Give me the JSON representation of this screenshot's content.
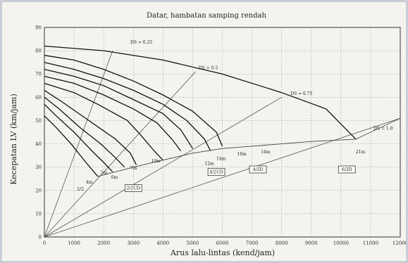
{
  "chart_data": {
    "type": "line",
    "title": "Datar, hambatan samping rendah",
    "xlabel": "Arus lalu-lintas (kend/jam)",
    "ylabel": "Kecepatan LV (km/jam)",
    "xlim": [
      0,
      12000
    ],
    "ylim": [
      0,
      90
    ],
    "xticks": [
      0,
      1000,
      2000,
      3000,
      4000,
      5000,
      6000,
      7000,
      8000,
      9000,
      10000,
      11000,
      12000
    ],
    "yticks": [
      0,
      10,
      20,
      30,
      40,
      50,
      60,
      70,
      80,
      90
    ],
    "grid": true,
    "series": [
      {
        "values": [
          [
            0,
            82
          ],
          [
            2000,
            80
          ],
          [
            4000,
            76
          ],
          [
            6000,
            70
          ],
          [
            8000,
            62
          ],
          [
            9500,
            55
          ],
          [
            10500,
            42
          ]
        ]
      },
      {
        "values": [
          [
            0,
            78
          ],
          [
            1000,
            76
          ],
          [
            2000,
            72
          ],
          [
            3000,
            67
          ],
          [
            4000,
            61
          ],
          [
            5000,
            54
          ],
          [
            5800,
            45
          ],
          [
            6000,
            39
          ]
        ]
      },
      {
        "values": [
          [
            0,
            75
          ],
          [
            1000,
            72
          ],
          [
            2000,
            68
          ],
          [
            3000,
            63
          ],
          [
            4000,
            57
          ],
          [
            4800,
            50
          ],
          [
            5400,
            42
          ],
          [
            5600,
            37
          ]
        ]
      },
      {
        "values": [
          [
            0,
            72
          ],
          [
            1000,
            69
          ],
          [
            2000,
            65
          ],
          [
            3000,
            59
          ],
          [
            4000,
            53
          ],
          [
            4600,
            46
          ],
          [
            5000,
            38
          ]
        ]
      },
      {
        "values": [
          [
            0,
            69
          ],
          [
            1000,
            66
          ],
          [
            2000,
            61
          ],
          [
            3000,
            55
          ],
          [
            3800,
            49
          ],
          [
            4300,
            42
          ],
          [
            4600,
            37
          ]
        ]
      },
      {
        "values": [
          [
            0,
            66
          ],
          [
            1000,
            62
          ],
          [
            1800,
            57
          ],
          [
            2800,
            50
          ],
          [
            3300,
            43
          ],
          [
            3700,
            37
          ],
          [
            4000,
            33
          ]
        ]
      },
      {
        "values": [
          [
            0,
            63
          ],
          [
            600,
            58
          ],
          [
            1500,
            50
          ],
          [
            2400,
            42
          ],
          [
            2900,
            36
          ],
          [
            3100,
            31
          ]
        ]
      },
      {
        "values": [
          [
            0,
            60
          ],
          [
            500,
            55
          ],
          [
            1200,
            47
          ],
          [
            1900,
            40
          ],
          [
            2400,
            34
          ],
          [
            2700,
            30
          ]
        ]
      },
      {
        "values": [
          [
            0,
            57
          ],
          [
            400,
            52
          ],
          [
            1000,
            45
          ],
          [
            1600,
            37
          ],
          [
            2000,
            32
          ],
          [
            2300,
            28
          ]
        ]
      },
      {
        "values": [
          [
            0,
            52
          ],
          [
            400,
            47
          ],
          [
            900,
            40
          ],
          [
            1400,
            32
          ],
          [
            1800,
            26
          ]
        ]
      }
    ],
    "capacity_line": [
      [
        1800,
        26
      ],
      [
        3000,
        30
      ],
      [
        4000,
        33
      ],
      [
        5000,
        36
      ],
      [
        6000,
        38
      ],
      [
        7000,
        39
      ],
      [
        8000,
        40
      ],
      [
        9000,
        41
      ],
      [
        10500,
        42
      ],
      [
        12000,
        51
      ]
    ],
    "ds_lines": [
      {
        "values": [
          [
            0,
            0
          ],
          [
            2300,
            80
          ]
        ]
      },
      {
        "values": [
          [
            0,
            0
          ],
          [
            5100,
            71
          ]
        ]
      },
      {
        "values": [
          [
            0,
            0
          ],
          [
            8000,
            60
          ]
        ]
      },
      {
        "values": [
          [
            0,
            0
          ],
          [
            12000,
            51
          ]
        ]
      }
    ],
    "annotations": [
      {
        "text": "DS = 0.25",
        "x": 2900,
        "y": 83
      },
      {
        "text": "DS = 0.5",
        "x": 5200,
        "y": 72
      },
      {
        "text": "DS = 0.75",
        "x": 8300,
        "y": 61
      },
      {
        "text": "DS = 1.0",
        "x": 11100,
        "y": 46
      },
      {
        "text": "2/2",
        "x": 1100,
        "y": 20
      },
      {
        "text": "4m",
        "x": 1400,
        "y": 23
      },
      {
        "text": "5m",
        "x": 1900,
        "y": 27
      },
      {
        "text": "6m",
        "x": 2250,
        "y": 25
      },
      {
        "text": "7m",
        "x": 2900,
        "y": 29
      },
      {
        "text": "10m",
        "x": 3600,
        "y": 32
      },
      {
        "text": "12m",
        "x": 5400,
        "y": 31
      },
      {
        "text": "14m",
        "x": 5800,
        "y": 33
      },
      {
        "text": "16m",
        "x": 6500,
        "y": 35
      },
      {
        "text": "14m",
        "x": 7300,
        "y": 36
      },
      {
        "text": "21m",
        "x": 10500,
        "y": 36
      }
    ],
    "boxes": [
      {
        "text": "2/2UD",
        "x": 3000,
        "y": 21
      },
      {
        "text": "4/2UD",
        "x": 5800,
        "y": 28
      },
      {
        "text": "4/2D",
        "x": 7200,
        "y": 29
      },
      {
        "text": "6/2D",
        "x": 10200,
        "y": 29
      }
    ]
  }
}
